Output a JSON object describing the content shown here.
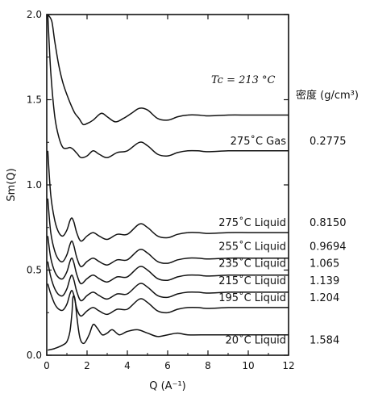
{
  "chart_data": {
    "type": "line",
    "xlabel": "Q (A⁻¹)",
    "ylabel": "Sm(Q)",
    "xlim": [
      0,
      12
    ],
    "ylim": [
      0,
      2.0
    ],
    "x_ticks": [
      0,
      2,
      4,
      6,
      8,
      10,
      12
    ],
    "x_tick_labels": [
      "0",
      "2",
      "4",
      "6",
      "8",
      "10",
      "12"
    ],
    "y_ticks": [
      0,
      0.5,
      1.0,
      1.5,
      2.0
    ],
    "y_tick_labels": [
      "0.0",
      "0.5",
      "1.0",
      "1.5",
      "2.0"
    ],
    "annotation": "Tc = 213 °C",
    "density_header": "密度 (g/cm³)",
    "line_color": "#111111",
    "grid": false,
    "series": [
      {
        "name": "20˚C  Liquid",
        "density": "1.584",
        "offset": 0.0,
        "baseline": 0.03,
        "points": [
          [
            0.05,
            0.03
          ],
          [
            0.4,
            0.04
          ],
          [
            0.8,
            0.06
          ],
          [
            1.0,
            0.08
          ],
          [
            1.15,
            0.14
          ],
          [
            1.25,
            0.25
          ],
          [
            1.3,
            0.34
          ],
          [
            1.4,
            0.33
          ],
          [
            1.5,
            0.22
          ],
          [
            1.65,
            0.1
          ],
          [
            1.85,
            0.07
          ],
          [
            2.1,
            0.12
          ],
          [
            2.3,
            0.18
          ],
          [
            2.5,
            0.16
          ],
          [
            2.75,
            0.12
          ],
          [
            3.0,
            0.13
          ],
          [
            3.25,
            0.15
          ],
          [
            3.6,
            0.12
          ],
          [
            4.0,
            0.14
          ],
          [
            4.5,
            0.15
          ],
          [
            5.0,
            0.13
          ],
          [
            5.5,
            0.11
          ],
          [
            6.0,
            0.12
          ],
          [
            6.5,
            0.13
          ],
          [
            7.0,
            0.12
          ],
          [
            8.0,
            0.12
          ],
          [
            9.0,
            0.12
          ],
          [
            10.0,
            0.12
          ],
          [
            11.0,
            0.12
          ],
          [
            12.0,
            0.12
          ]
        ]
      },
      {
        "name": "195˚C Liquid",
        "density": "1.204",
        "offset": 0.0,
        "baseline": 0.28,
        "points": [
          [
            0.05,
            0.42
          ],
          [
            0.2,
            0.36
          ],
          [
            0.4,
            0.3
          ],
          [
            0.6,
            0.27
          ],
          [
            0.8,
            0.265
          ],
          [
            1.0,
            0.3
          ],
          [
            1.15,
            0.36
          ],
          [
            1.25,
            0.38
          ],
          [
            1.35,
            0.35
          ],
          [
            1.5,
            0.27
          ],
          [
            1.7,
            0.23
          ],
          [
            2.0,
            0.26
          ],
          [
            2.3,
            0.28
          ],
          [
            2.6,
            0.26
          ],
          [
            3.0,
            0.24
          ],
          [
            3.5,
            0.27
          ],
          [
            4.0,
            0.27
          ],
          [
            4.6,
            0.33
          ],
          [
            5.0,
            0.31
          ],
          [
            5.5,
            0.26
          ],
          [
            6.0,
            0.25
          ],
          [
            6.5,
            0.27
          ],
          [
            7.0,
            0.28
          ],
          [
            7.5,
            0.28
          ],
          [
            8.0,
            0.275
          ],
          [
            9.0,
            0.28
          ],
          [
            10.0,
            0.28
          ],
          [
            11.0,
            0.28
          ],
          [
            12.0,
            0.28
          ]
        ]
      },
      {
        "name": "215˚C Liquid",
        "density": "1.139",
        "offset": 0.0,
        "baseline": 0.38,
        "points": [
          [
            0.05,
            0.55
          ],
          [
            0.2,
            0.46
          ],
          [
            0.4,
            0.39
          ],
          [
            0.6,
            0.355
          ],
          [
            0.8,
            0.35
          ],
          [
            1.0,
            0.39
          ],
          [
            1.15,
            0.45
          ],
          [
            1.25,
            0.47
          ],
          [
            1.35,
            0.44
          ],
          [
            1.5,
            0.37
          ],
          [
            1.7,
            0.32
          ],
          [
            2.0,
            0.35
          ],
          [
            2.3,
            0.37
          ],
          [
            2.6,
            0.35
          ],
          [
            3.0,
            0.33
          ],
          [
            3.5,
            0.36
          ],
          [
            4.0,
            0.36
          ],
          [
            4.6,
            0.42
          ],
          [
            5.0,
            0.4
          ],
          [
            5.5,
            0.35
          ],
          [
            6.0,
            0.34
          ],
          [
            6.5,
            0.36
          ],
          [
            7.0,
            0.37
          ],
          [
            7.5,
            0.37
          ],
          [
            8.0,
            0.365
          ],
          [
            9.0,
            0.37
          ],
          [
            10.0,
            0.37
          ],
          [
            11.0,
            0.37
          ],
          [
            12.0,
            0.37
          ]
        ]
      },
      {
        "name": "235˚C Liquid",
        "density": "1.065",
        "offset": 0.0,
        "baseline": 0.48,
        "points": [
          [
            0.05,
            0.7
          ],
          [
            0.2,
            0.57
          ],
          [
            0.4,
            0.49
          ],
          [
            0.6,
            0.455
          ],
          [
            0.8,
            0.45
          ],
          [
            1.0,
            0.49
          ],
          [
            1.15,
            0.55
          ],
          [
            1.25,
            0.57
          ],
          [
            1.35,
            0.54
          ],
          [
            1.5,
            0.47
          ],
          [
            1.7,
            0.42
          ],
          [
            2.0,
            0.45
          ],
          [
            2.3,
            0.47
          ],
          [
            2.6,
            0.45
          ],
          [
            3.0,
            0.43
          ],
          [
            3.5,
            0.46
          ],
          [
            4.0,
            0.46
          ],
          [
            4.6,
            0.52
          ],
          [
            5.0,
            0.5
          ],
          [
            5.5,
            0.45
          ],
          [
            6.0,
            0.44
          ],
          [
            6.5,
            0.46
          ],
          [
            7.0,
            0.47
          ],
          [
            7.5,
            0.47
          ],
          [
            8.0,
            0.465
          ],
          [
            9.0,
            0.47
          ],
          [
            10.0,
            0.47
          ],
          [
            11.0,
            0.47
          ],
          [
            12.0,
            0.47
          ]
        ]
      },
      {
        "name": "255˚C Liquid",
        "density": "0.9694",
        "offset": 0.0,
        "baseline": 0.58,
        "points": [
          [
            0.05,
            0.92
          ],
          [
            0.2,
            0.72
          ],
          [
            0.4,
            0.61
          ],
          [
            0.6,
            0.56
          ],
          [
            0.8,
            0.55
          ],
          [
            1.0,
            0.59
          ],
          [
            1.15,
            0.65
          ],
          [
            1.25,
            0.67
          ],
          [
            1.35,
            0.64
          ],
          [
            1.5,
            0.57
          ],
          [
            1.7,
            0.52
          ],
          [
            2.0,
            0.55
          ],
          [
            2.3,
            0.57
          ],
          [
            2.6,
            0.55
          ],
          [
            3.0,
            0.53
          ],
          [
            3.5,
            0.56
          ],
          [
            4.0,
            0.56
          ],
          [
            4.6,
            0.62
          ],
          [
            5.0,
            0.6
          ],
          [
            5.5,
            0.55
          ],
          [
            6.0,
            0.54
          ],
          [
            6.5,
            0.56
          ],
          [
            7.0,
            0.57
          ],
          [
            7.5,
            0.57
          ],
          [
            8.0,
            0.565
          ],
          [
            9.0,
            0.57
          ],
          [
            10.0,
            0.57
          ],
          [
            11.0,
            0.57
          ],
          [
            12.0,
            0.57
          ]
        ]
      },
      {
        "name": "275˚C Liquid",
        "density": "0.8150",
        "offset": 0.0,
        "baseline": 0.72,
        "points": [
          [
            0.05,
            1.2
          ],
          [
            0.2,
            0.94
          ],
          [
            0.4,
            0.79
          ],
          [
            0.6,
            0.72
          ],
          [
            0.8,
            0.7
          ],
          [
            1.0,
            0.735
          ],
          [
            1.15,
            0.79
          ],
          [
            1.25,
            0.805
          ],
          [
            1.35,
            0.78
          ],
          [
            1.5,
            0.715
          ],
          [
            1.7,
            0.67
          ],
          [
            2.0,
            0.7
          ],
          [
            2.3,
            0.72
          ],
          [
            2.6,
            0.7
          ],
          [
            3.0,
            0.68
          ],
          [
            3.5,
            0.71
          ],
          [
            4.0,
            0.71
          ],
          [
            4.6,
            0.77
          ],
          [
            5.0,
            0.75
          ],
          [
            5.5,
            0.7
          ],
          [
            6.0,
            0.69
          ],
          [
            6.5,
            0.71
          ],
          [
            7.0,
            0.72
          ],
          [
            7.5,
            0.72
          ],
          [
            8.0,
            0.715
          ],
          [
            9.0,
            0.72
          ],
          [
            10.0,
            0.72
          ],
          [
            11.0,
            0.72
          ],
          [
            12.0,
            0.72
          ]
        ]
      },
      {
        "name": "275˚C Gas",
        "density": "0.2775",
        "offset": 0.0,
        "baseline": 1.2,
        "points": [
          [
            0.05,
            2.0
          ],
          [
            0.2,
            1.66
          ],
          [
            0.4,
            1.4
          ],
          [
            0.6,
            1.28
          ],
          [
            0.8,
            1.22
          ],
          [
            1.0,
            1.215
          ],
          [
            1.15,
            1.22
          ],
          [
            1.3,
            1.21
          ],
          [
            1.5,
            1.185
          ],
          [
            1.7,
            1.16
          ],
          [
            2.0,
            1.17
          ],
          [
            2.3,
            1.2
          ],
          [
            2.6,
            1.18
          ],
          [
            3.0,
            1.16
          ],
          [
            3.5,
            1.19
          ],
          [
            4.0,
            1.2
          ],
          [
            4.6,
            1.25
          ],
          [
            5.0,
            1.23
          ],
          [
            5.5,
            1.18
          ],
          [
            6.0,
            1.17
          ],
          [
            6.5,
            1.19
          ],
          [
            7.0,
            1.2
          ],
          [
            7.5,
            1.2
          ],
          [
            8.0,
            1.195
          ],
          [
            9.0,
            1.2
          ],
          [
            10.0,
            1.2
          ],
          [
            11.0,
            1.2
          ],
          [
            12.0,
            1.2
          ]
        ]
      },
      {
        "name": "",
        "density": "",
        "offset": 0.0,
        "baseline": 1.42,
        "points": [
          [
            0.05,
            2.0
          ],
          [
            0.25,
            1.96
          ],
          [
            0.4,
            1.84
          ],
          [
            0.6,
            1.7
          ],
          [
            0.8,
            1.6
          ],
          [
            1.0,
            1.53
          ],
          [
            1.2,
            1.47
          ],
          [
            1.4,
            1.42
          ],
          [
            1.6,
            1.39
          ],
          [
            1.8,
            1.355
          ],
          [
            2.0,
            1.36
          ],
          [
            2.3,
            1.38
          ],
          [
            2.7,
            1.42
          ],
          [
            3.0,
            1.4
          ],
          [
            3.4,
            1.37
          ],
          [
            3.8,
            1.39
          ],
          [
            4.2,
            1.42
          ],
          [
            4.6,
            1.45
          ],
          [
            5.0,
            1.44
          ],
          [
            5.5,
            1.39
          ],
          [
            6.0,
            1.38
          ],
          [
            6.5,
            1.4
          ],
          [
            7.0,
            1.41
          ],
          [
            7.5,
            1.41
          ],
          [
            8.0,
            1.405
          ],
          [
            9.0,
            1.41
          ],
          [
            10.0,
            1.41
          ],
          [
            11.0,
            1.41
          ],
          [
            12.0,
            1.41
          ]
        ]
      }
    ]
  }
}
